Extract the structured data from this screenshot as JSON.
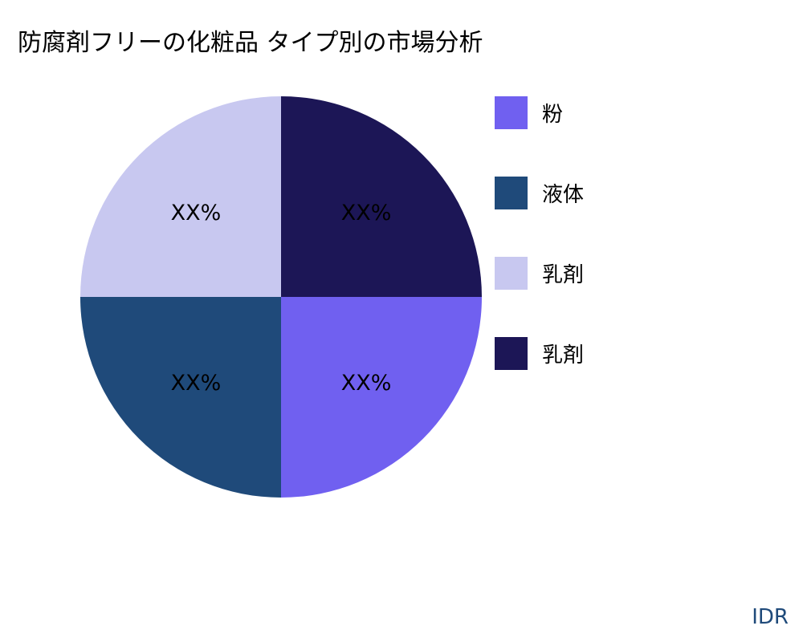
{
  "chart_data": {
    "type": "pie",
    "title": "防腐剤フリーの化粧品 タイプ別の市場分析",
    "categories": [
      "粉",
      "液体",
      "乳剤",
      "乳剤"
    ],
    "values": [
      25,
      25,
      25,
      25
    ],
    "data_labels": [
      "XX%",
      "XX%",
      "XX%",
      "XX%"
    ],
    "colors": [
      "#7060f0",
      "#1f4a7a",
      "#c8c8f0",
      "#1c1656"
    ],
    "legend_position": "right",
    "start_angle": "east",
    "direction": "clockwise"
  },
  "brand": "IDR"
}
